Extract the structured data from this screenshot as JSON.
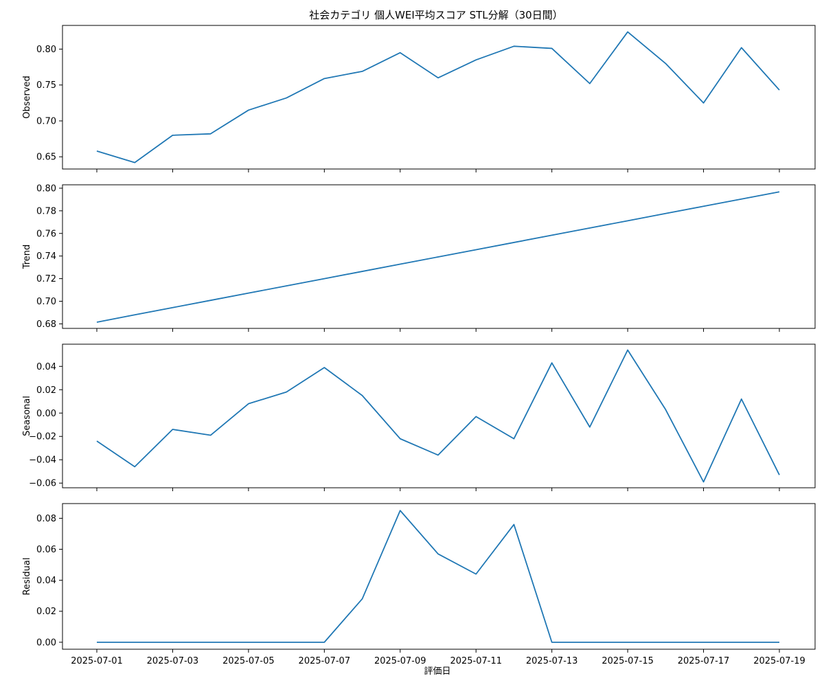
{
  "chart_data": {
    "type": "line",
    "title": "社会カテゴリ 個人WEI平均スコア STL分解（30日間）",
    "xlabel": "評価日",
    "x": [
      "2025-07-01",
      "2025-07-02",
      "2025-07-03",
      "2025-07-04",
      "2025-07-05",
      "2025-07-06",
      "2025-07-07",
      "2025-07-08",
      "2025-07-09",
      "2025-07-10",
      "2025-07-11",
      "2025-07-12",
      "2025-07-13",
      "2025-07-14",
      "2025-07-15",
      "2025-07-16",
      "2025-07-17",
      "2025-07-18",
      "2025-07-19"
    ],
    "x_tick_labels": [
      "2025-07-01",
      "2025-07-03",
      "2025-07-05",
      "2025-07-07",
      "2025-07-09",
      "2025-07-11",
      "2025-07-13",
      "2025-07-15",
      "2025-07-17",
      "2025-07-19"
    ],
    "line_color": "#1f77b4",
    "panels": [
      {
        "name": "observed",
        "ylabel": "Observed",
        "ylim": [
          0.633,
          0.833
        ],
        "yticks": [
          0.65,
          0.7,
          0.75,
          0.8
        ],
        "ytick_labels": [
          "0.65",
          "0.70",
          "0.75",
          "0.80"
        ],
        "values": [
          0.658,
          0.642,
          0.68,
          0.682,
          0.715,
          0.732,
          0.759,
          0.769,
          0.795,
          0.76,
          0.785,
          0.804,
          0.801,
          0.752,
          0.824,
          0.78,
          0.725,
          0.802,
          0.743
        ]
      },
      {
        "name": "trend",
        "ylabel": "Trend",
        "ylim": [
          0.676,
          0.803
        ],
        "yticks": [
          0.68,
          0.7,
          0.72,
          0.74,
          0.76,
          0.78,
          0.8
        ],
        "ytick_labels": [
          "0.68",
          "0.70",
          "0.72",
          "0.74",
          "0.76",
          "0.78",
          "0.80"
        ],
        "values": [
          0.6815,
          0.688,
          0.6944,
          0.7008,
          0.7072,
          0.7136,
          0.72,
          0.7264,
          0.7328,
          0.7392,
          0.7456,
          0.752,
          0.7584,
          0.7648,
          0.7712,
          0.7776,
          0.784,
          0.7904,
          0.7968
        ]
      },
      {
        "name": "seasonal",
        "ylabel": "Seasonal",
        "ylim": [
          -0.064,
          0.059
        ],
        "yticks": [
          -0.06,
          -0.04,
          -0.02,
          0.0,
          0.02,
          0.04
        ],
        "ytick_labels": [
          "−0.06",
          "−0.04",
          "−0.02",
          "0.00",
          "0.02",
          "0.04"
        ],
        "values": [
          -0.024,
          -0.046,
          -0.014,
          -0.019,
          0.008,
          0.018,
          0.039,
          0.015,
          -0.022,
          -0.036,
          -0.003,
          -0.022,
          0.043,
          -0.012,
          0.054,
          0.003,
          -0.059,
          0.012,
          -0.053
        ]
      },
      {
        "name": "residual",
        "ylabel": "Residual",
        "ylim": [
          -0.0045,
          0.0895
        ],
        "yticks": [
          0.0,
          0.02,
          0.04,
          0.06,
          0.08
        ],
        "ytick_labels": [
          "0.00",
          "0.02",
          "0.04",
          "0.06",
          "0.08"
        ],
        "values": [
          0,
          0,
          0,
          0,
          0,
          0,
          0,
          0.028,
          0.085,
          0.057,
          0.044,
          0.076,
          0,
          0,
          0,
          0,
          0,
          0,
          0
        ]
      }
    ]
  }
}
